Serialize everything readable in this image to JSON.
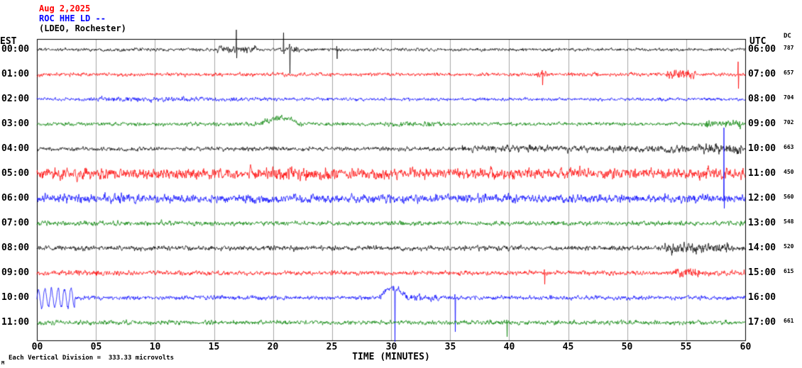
{
  "header": {
    "date": "Aug 2,2025",
    "station": "ROC HHE LD --",
    "location": "(LDEO, Rochester)"
  },
  "axes": {
    "left_timezone_label": "EST",
    "right_timezone_label": "UTC",
    "dc_column_label": "DC",
    "x_axis_label": "TIME (MINUTES)",
    "x_ticks": [
      "00",
      "05",
      "10",
      "15",
      "20",
      "25",
      "30",
      "35",
      "40",
      "45",
      "50",
      "55",
      "60"
    ]
  },
  "footer": {
    "scale_note": "Each Vertical Division =  333.33 microvolts",
    "corner_mark": "M"
  },
  "chart_data": {
    "type": "line",
    "subtype": "seismogram-helicorder",
    "x_range_minutes": [
      0,
      60
    ],
    "grid_interval_minutes": 5,
    "vertical_division_microvolts": 333.33,
    "grid_color": "#a6a6a6",
    "border_color": "#000000",
    "traces": [
      {
        "est_time": "00:00",
        "utc_time": "06:00",
        "dc_offset": "787",
        "color": "#000000",
        "base_amp": 3.5,
        "segments": [
          {
            "start": 15.3,
            "end": 18.6,
            "amp": 8
          },
          {
            "start": 20.4,
            "end": 22.3,
            "amp": 6
          }
        ],
        "spikes": [
          {
            "minute": 16.9,
            "up": 28,
            "down": 12
          },
          {
            "minute": 20.9,
            "up": 24,
            "down": 6
          },
          {
            "minute": 21.4,
            "up": 8,
            "down": 34
          },
          {
            "minute": 25.4,
            "up": 5,
            "down": 13
          }
        ]
      },
      {
        "est_time": "01:00",
        "utc_time": "07:00",
        "dc_offset": "657",
        "color": "#ff0000",
        "base_amp": 4,
        "segments": [
          {
            "start": 42.4,
            "end": 43.3,
            "amp": 7
          },
          {
            "start": 53.3,
            "end": 55.8,
            "amp": 13
          }
        ],
        "spikes": [
          {
            "minute": 42.8,
            "up": 6,
            "down": 15
          },
          {
            "minute": 59.4,
            "up": 18,
            "down": 20
          }
        ]
      },
      {
        "est_time": "02:00",
        "utc_time": "08:00",
        "dc_offset": "704",
        "color": "#0000ff",
        "base_amp": 3.6,
        "segments": [
          {
            "start": 4.5,
            "end": 13,
            "amp": 5.5
          },
          {
            "start": 13,
            "end": 19.5,
            "amp": 4.6
          }
        ],
        "spikes": []
      },
      {
        "est_time": "03:00",
        "utc_time": "09:00",
        "dc_offset": "702",
        "color": "#008000",
        "base_amp": 4.2,
        "segments": [
          {
            "start": 19,
            "end": 22.4,
            "amp": 9,
            "lf": true,
            "period": 6.8
          },
          {
            "start": 19,
            "end": 22.6,
            "amp": 6
          },
          {
            "start": 30,
            "end": 34.5,
            "amp": 5.5
          },
          {
            "start": 56.3,
            "end": 59.6,
            "amp": 9
          }
        ],
        "spikes": []
      },
      {
        "est_time": "04:00",
        "utc_time": "10:00",
        "dc_offset": "663",
        "color": "#000000",
        "base_amp": 4.5,
        "segments": [
          {
            "start": 36,
            "end": 56,
            "amp": 7.5
          },
          {
            "start": 56,
            "end": 59.7,
            "amp": 12
          }
        ],
        "spikes": []
      },
      {
        "est_time": "05:00",
        "utc_time": "11:00",
        "dc_offset": "450",
        "color": "#ff0000",
        "base_amp": 12,
        "segments": [
          {
            "start": 18,
            "end": 26,
            "amp": 14
          }
        ],
        "spikes": []
      },
      {
        "est_time": "06:00",
        "utc_time": "12:00",
        "dc_offset": "560",
        "color": "#0000ff",
        "base_amp": 9,
        "segments": [
          {
            "start": 0,
            "end": 10,
            "amp": 11
          }
        ],
        "spikes": [
          {
            "minute": 58.2,
            "up": 100,
            "down": 14
          }
        ]
      },
      {
        "est_time": "07:00",
        "utc_time": "13:00",
        "dc_offset": "548",
        "color": "#008000",
        "base_amp": 5,
        "segments": [],
        "spikes": []
      },
      {
        "est_time": "08:00",
        "utc_time": "14:00",
        "dc_offset": "520",
        "color": "#000000",
        "base_amp": 5.5,
        "segments": [
          {
            "start": 53.2,
            "end": 58.6,
            "amp": 12
          }
        ],
        "spikes": []
      },
      {
        "est_time": "09:00",
        "utc_time": "15:00",
        "dc_offset": "615",
        "color": "#ff0000",
        "base_amp": 5,
        "segments": [
          {
            "start": 2,
            "end": 7,
            "amp": 7
          },
          {
            "start": 54,
            "end": 56.2,
            "amp": 12
          },
          {
            "start": 56.2,
            "end": 60,
            "amp": 7
          }
        ],
        "spikes": [
          {
            "minute": 43,
            "up": 5,
            "down": 16
          }
        ]
      },
      {
        "est_time": "10:00",
        "utc_time": "16:00",
        "dc_offset": "",
        "color": "#0000ff",
        "base_amp": 4.5,
        "segments": [
          {
            "start": 0,
            "end": 3.2,
            "amp": 13,
            "lf": true,
            "period": 0.55
          },
          {
            "start": 0,
            "end": 3.2,
            "amp": 6
          },
          {
            "start": 28.9,
            "end": 31.4,
            "amp": 14,
            "lf": true,
            "period": 5
          },
          {
            "start": 28.9,
            "end": 34,
            "amp": 7
          }
        ],
        "spikes": [
          {
            "minute": 30.3,
            "up": 8,
            "down": 62
          },
          {
            "minute": 35.4,
            "up": 5,
            "down": 48
          }
        ]
      },
      {
        "est_time": "11:00",
        "utc_time": "17:00",
        "dc_offset": "661",
        "color": "#008000",
        "base_amp": 4.8,
        "segments": [],
        "spikes": [
          {
            "minute": 39.8,
            "up": 4,
            "down": 20
          }
        ]
      }
    ]
  }
}
